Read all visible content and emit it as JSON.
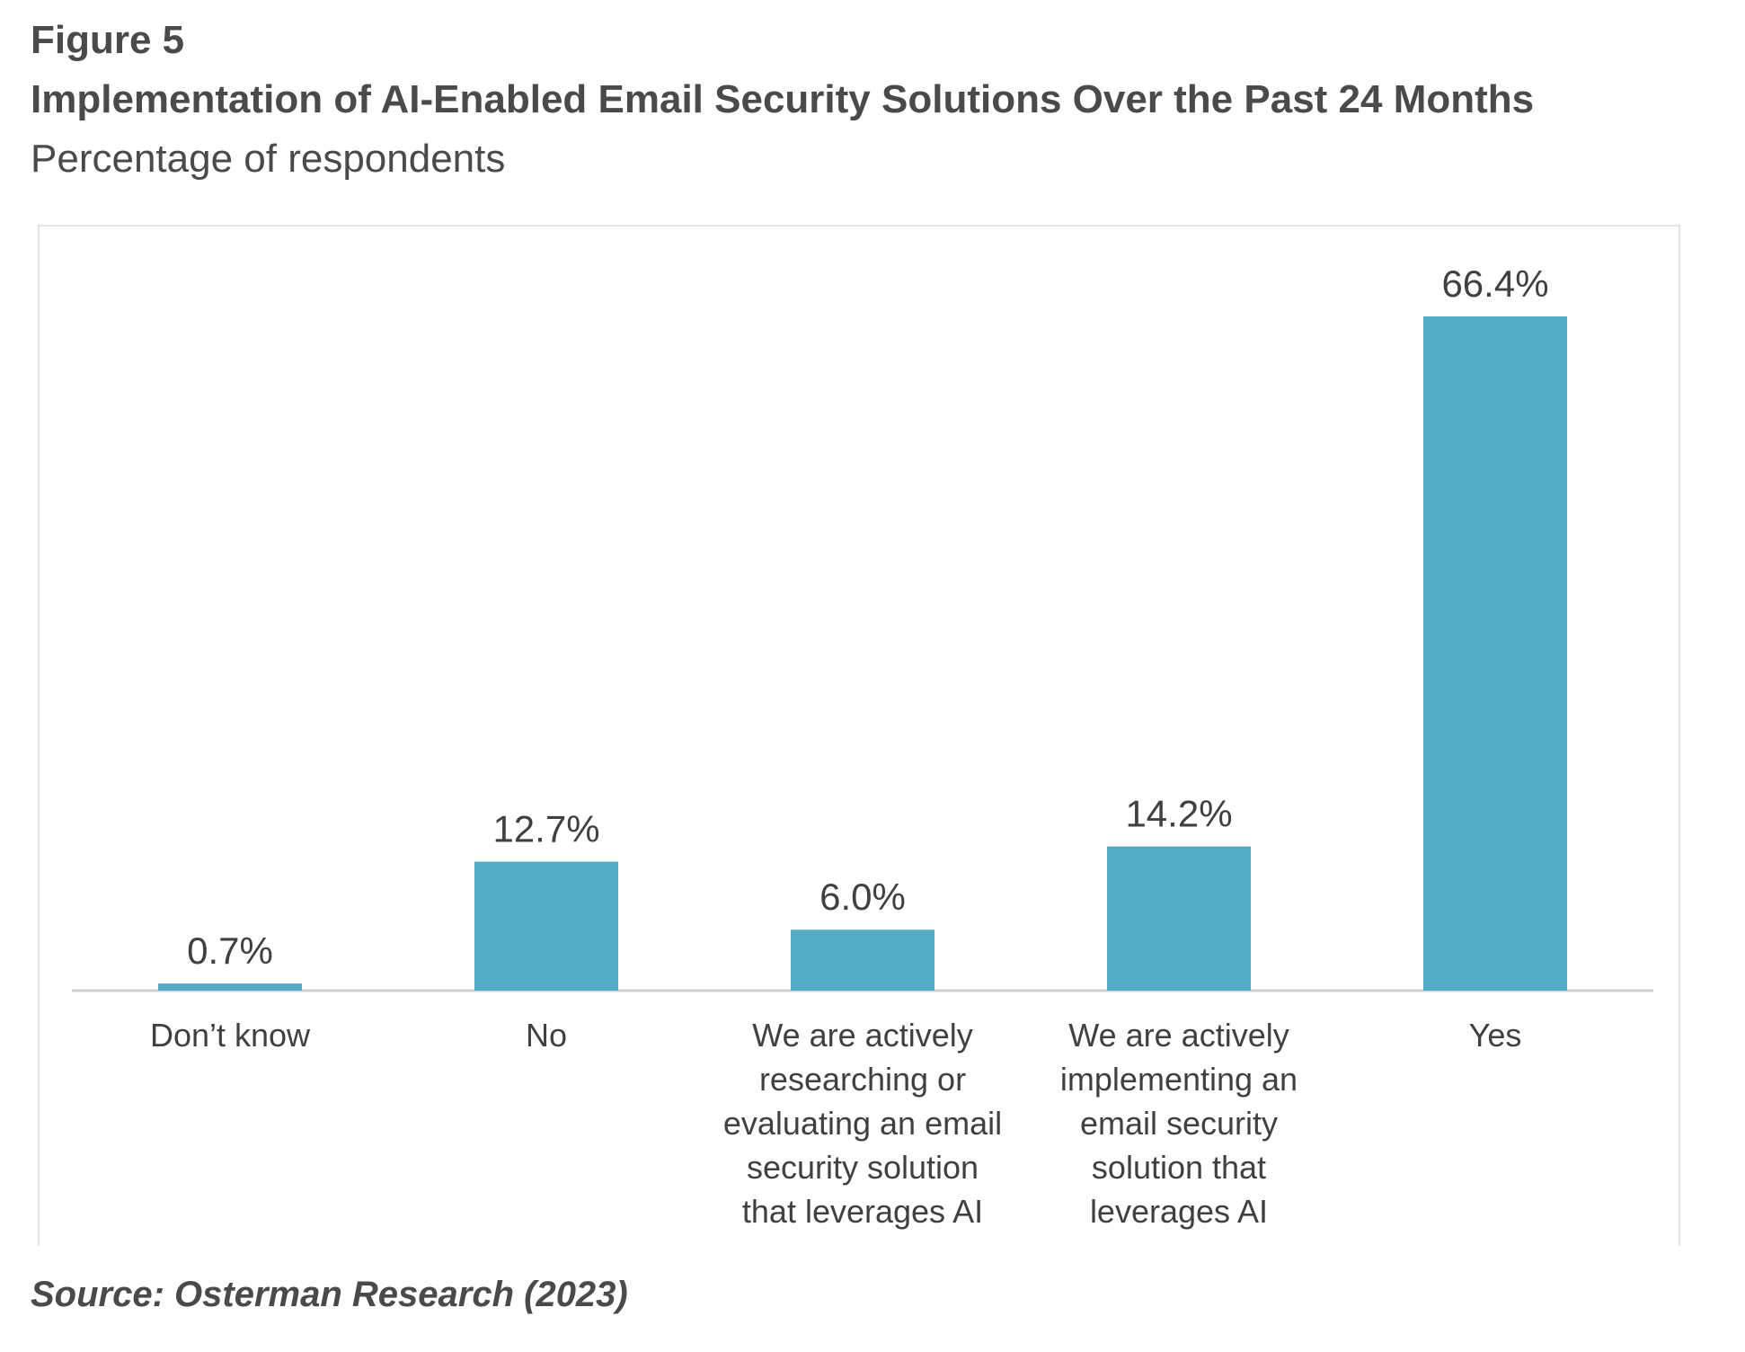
{
  "figure_label": "Figure 5",
  "chart_data": {
    "type": "bar",
    "title": "Implementation of AI-Enabled Email Security Solutions Over the Past 24 Months",
    "subtitle": "Percentage of respondents",
    "categories": [
      [
        "Don’t know"
      ],
      [
        "No"
      ],
      [
        "We are actively",
        "researching or",
        "evaluating an email",
        "security solution",
        "that leverages AI"
      ],
      [
        "We are actively",
        "implementing an",
        "email security",
        "solution that",
        "leverages AI"
      ],
      [
        "Yes"
      ]
    ],
    "values": [
      0.7,
      12.7,
      6.0,
      14.2,
      66.4
    ],
    "value_labels": [
      "0.7%",
      "12.7%",
      "6.0%",
      "14.2%",
      "66.4%"
    ],
    "ylim": [
      0,
      66.4
    ],
    "grid": false,
    "bar_color": "#52abc3",
    "axis_color": "#d0d0d0"
  },
  "source": "Source: Osterman Research (2023)"
}
